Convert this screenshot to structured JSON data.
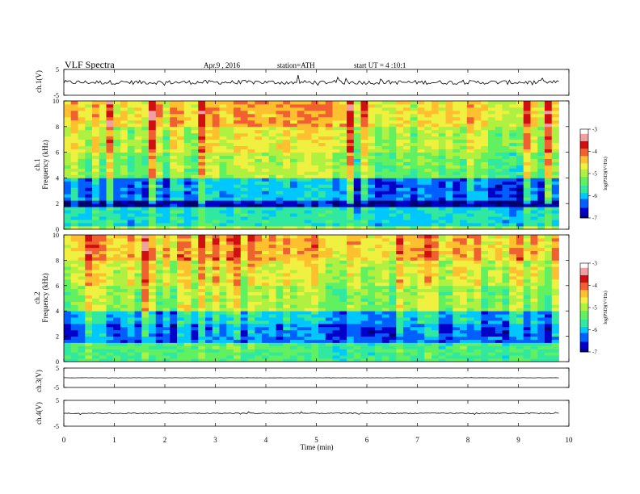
{
  "header": {
    "title": "VLF  Spectra",
    "date": "Apr.9  , 2016",
    "station": "station=ATH",
    "start": "start  UT  =   4  :10:1"
  },
  "x_axis": {
    "label": "Time  (min)",
    "ticks": [
      "0",
      "1",
      "2",
      "3",
      "4",
      "5",
      "6",
      "7",
      "8",
      "9",
      "10"
    ]
  },
  "colorbar": {
    "label": "log(PSD)(V²/Hz)",
    "ticks": [
      "-3",
      "-4",
      "-5",
      "-6",
      "-7"
    ],
    "colors": [
      "#000070",
      "#0000c8",
      "#0060ff",
      "#00c8ff",
      "#30e8a0",
      "#60f060",
      "#b0f040",
      "#f0f040",
      "#ffc030",
      "#f06030",
      "#d01010",
      "#f0a0a0",
      "#ffffff"
    ]
  },
  "chart_data": [
    {
      "type": "line",
      "panel": "ch.1 waveform",
      "ylabel": "ch.1(V)",
      "yticks": [
        "5",
        "-5"
      ],
      "ylim": [
        -5,
        5
      ],
      "xlim": [
        0,
        10
      ],
      "x_end": 9.8,
      "baseline": 0.0,
      "noise_amplitude": 0.8
    },
    {
      "type": "heatmap",
      "panel": "ch.1 spectrogram",
      "ylabel": "ch.1\nFrequency  (kHz)",
      "yticks": [
        "0",
        "2",
        "4",
        "6",
        "8",
        "10"
      ],
      "ylim": [
        0,
        10
      ],
      "xlim": [
        0,
        10
      ],
      "x_end": 9.8,
      "z_range": [
        -7,
        -3
      ],
      "z_by_band": [
        {
          "f": [
            0.0,
            0.3
          ],
          "z": -5.0
        },
        {
          "f": [
            0.3,
            1.8
          ],
          "z": -5.8
        },
        {
          "f": [
            1.8,
            2.2
          ],
          "z": -6.8
        },
        {
          "f": [
            2.2,
            4.0
          ],
          "z": -6.2
        },
        {
          "f": [
            4.0,
            6.0
          ],
          "z": -5.2
        },
        {
          "f": [
            6.0,
            8.0
          ],
          "z": -4.9
        },
        {
          "f": [
            8.0,
            10.0
          ],
          "z": -4.5
        }
      ]
    },
    {
      "type": "heatmap",
      "panel": "ch.2 spectrogram",
      "ylabel": "ch.2\nFrequency  (kHz)",
      "yticks": [
        "0",
        "2",
        "4",
        "6",
        "8",
        "10"
      ],
      "ylim": [
        0,
        10
      ],
      "xlim": [
        0,
        10
      ],
      "x_end": 9.8,
      "z_range": [
        -7,
        -3
      ],
      "z_by_band": [
        {
          "f": [
            0.0,
            1.5
          ],
          "z": -5.5
        },
        {
          "f": [
            1.5,
            3.0
          ],
          "z": -6.3
        },
        {
          "f": [
            3.0,
            4.0
          ],
          "z": -6.0
        },
        {
          "f": [
            4.0,
            6.0
          ],
          "z": -5.1
        },
        {
          "f": [
            6.0,
            8.0
          ],
          "z": -4.8
        },
        {
          "f": [
            8.0,
            10.0
          ],
          "z": -4.4
        }
      ]
    },
    {
      "type": "line",
      "panel": "ch.3 waveform",
      "ylabel": "ch.3(V)",
      "yticks": [
        "5",
        "-5"
      ],
      "ylim": [
        -5,
        5
      ],
      "xlim": [
        0,
        10
      ],
      "x_end": 9.8,
      "baseline": 0.0,
      "noise_amplitude": 0.05
    },
    {
      "type": "line",
      "panel": "ch.4 waveform",
      "ylabel": "ch.4(V)",
      "yticks": [
        "5",
        "-5"
      ],
      "ylim": [
        -5,
        5
      ],
      "xlim": [
        0,
        10
      ],
      "x_end": 9.8,
      "baseline": 0.0,
      "noise_amplitude": 0.2
    }
  ]
}
